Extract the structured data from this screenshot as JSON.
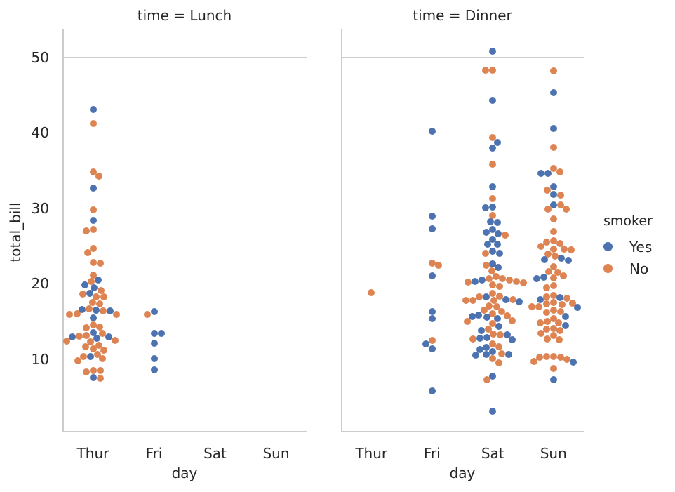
{
  "figure": {
    "background": "#ffffff"
  },
  "colors": {
    "yes": "#4c72b0",
    "no": "#dd8452",
    "grid": "#cccccc",
    "spine": "#cccccc",
    "text": "#262626"
  },
  "chart_data": {
    "type": "scatter",
    "variant": "categorical-swarm",
    "facet_by": "time",
    "hue": "smoker",
    "xlabel": "day",
    "ylabel": "total_bill",
    "x_categories": [
      "Thur",
      "Fri",
      "Sat",
      "Sun"
    ],
    "yticks": [
      10,
      20,
      30,
      40,
      50
    ],
    "ylim": [
      0.4,
      53.7
    ],
    "grid": true,
    "legend": {
      "title": "smoker",
      "position": "right",
      "entries": [
        {
          "label": "Yes",
          "color": "#4c72b0"
        },
        {
          "label": "No",
          "color": "#dd8452"
        }
      ]
    },
    "facets": [
      {
        "title": "time = Lunch",
        "groups": {
          "Thur": {
            "No": [
              27.2,
              22.76,
              17.29,
              16.66,
              10.07,
              15.98,
              34.83,
              13.03,
              18.28,
              24.71,
              21.16,
              10.65,
              12.43,
              24.08,
              11.69,
              13.42,
              14.26,
              15.95,
              12.48,
              29.8,
              8.52,
              14.52,
              11.38,
              22.82,
              19.08,
              20.27,
              11.17,
              12.26,
              18.26,
              8.51,
              10.33,
              14.15,
              16.0,
              13.16,
              17.47,
              34.3,
              41.19,
              27.05,
              16.43,
              8.35,
              18.64,
              11.87,
              9.78,
              7.51
            ],
            "Yes": [
              19.44,
              32.68,
              19.81,
              28.44,
              15.48,
              16.58,
              7.56,
              10.34,
              43.11,
              13.0,
              13.51,
              18.71,
              12.74,
              13.0,
              16.4,
              20.53,
              16.47
            ]
          },
          "Fri": {
            "No": [
              15.98
            ],
            "Yes": [
              16.27,
              13.42,
              12.16,
              13.42,
              10.09,
              8.58
            ]
          },
          "Sat": {
            "No": [],
            "Yes": []
          },
          "Sun": {
            "No": [],
            "Yes": []
          }
        }
      },
      {
        "title": "time = Dinner",
        "groups": {
          "Thur": {
            "No": [
              18.78
            ],
            "Yes": []
          },
          "Fri": {
            "No": [
              22.49,
              22.75,
              12.46
            ],
            "Yes": [
              28.97,
              5.75,
              16.32,
              40.17,
              27.28,
              12.03,
              21.01,
              11.35,
              15.38
            ]
          },
          "Sat": {
            "No": [
              20.65,
              17.92,
              20.29,
              15.77,
              39.42,
              19.82,
              17.81,
              13.37,
              12.69,
              21.7,
              19.65,
              9.55,
              18.35,
              15.06,
              20.69,
              17.78,
              24.06,
              16.31,
              16.93,
              18.69,
              31.27,
              16.04,
              26.41,
              48.27,
              48.33,
              22.42,
              20.92,
              18.24,
              14.0,
              7.25,
              20.45,
              13.28,
              11.61,
              10.77,
              10.07,
              35.83,
              29.03,
              17.82,
              20.08,
              16.45,
              20.23,
              15.01,
              12.02,
              17.07,
              14.73
            ],
            "Yes": [
              38.01,
              11.24,
              13.81,
              11.02,
              18.29,
              17.59,
              3.07,
              26.86,
              25.28,
              10.51,
              17.92,
              10.59,
              10.63,
              50.81,
              15.81,
              44.3,
              15.36,
              20.49,
              25.21,
              14.31,
              26.59,
              38.73,
              24.27,
              12.76,
              30.06,
              25.89,
              13.27,
              28.17,
              12.9,
              28.15,
              11.59,
              7.74,
              30.14,
              22.12,
              24.01,
              15.69,
              15.53,
              12.6,
              32.83,
              27.18,
              22.67,
              20.29
            ]
          },
          "Sun": {
            "No": [
              16.99,
              10.34,
              21.01,
              23.68,
              24.59,
              25.29,
              8.77,
              26.88,
              15.04,
              14.78,
              10.27,
              35.26,
              15.42,
              18.43,
              14.83,
              21.58,
              10.33,
              16.29,
              16.97,
              17.46,
              13.94,
              9.68,
              30.4,
              18.29,
              22.23,
              32.4,
              28.55,
              18.04,
              12.54,
              10.29,
              34.81,
              9.94,
              25.56,
              19.49,
              14.07,
              13.13,
              17.26,
              24.55,
              19.77,
              29.85,
              48.17,
              25.0,
              13.39,
              16.49,
              21.5,
              12.66,
              16.21,
              13.81,
              17.51,
              24.52,
              20.76,
              31.71,
              38.07,
              23.95,
              25.71,
              17.31,
              29.93
            ],
            "Yes": [
              45.35,
              40.55,
              34.63,
              34.65,
              32.9,
              31.85,
              30.46,
              23.33,
              23.17,
              23.1,
              20.9,
              20.69,
              18.15,
              17.89,
              16.82,
              15.69,
              14.48,
              9.6,
              7.25
            ]
          }
        }
      }
    ]
  }
}
